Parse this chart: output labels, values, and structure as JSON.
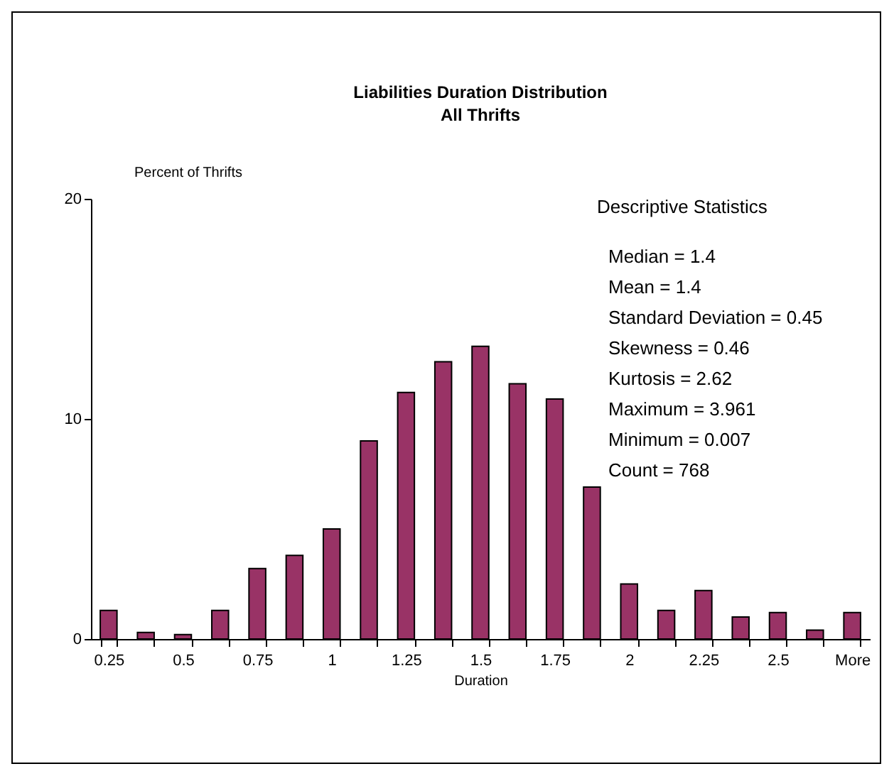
{
  "chart_data": {
    "type": "bar",
    "title": "Liabilities Duration Distribution",
    "subtitle": "All Thrifts",
    "xlabel": "Duration",
    "ylabel": "Percent of Thrifts",
    "categories": [
      "0.25",
      null,
      "0.5",
      null,
      "0.75",
      null,
      "1",
      null,
      "1.25",
      null,
      "1.5",
      null,
      "1.75",
      null,
      "2",
      null,
      "2.25",
      null,
      "2.5",
      null,
      "More"
    ],
    "values": [
      1.3,
      0.3,
      0.2,
      1.3,
      3.2,
      3.8,
      5.0,
      9.0,
      11.2,
      12.6,
      13.3,
      11.6,
      10.9,
      6.9,
      2.5,
      1.3,
      2.2,
      1.0,
      1.2,
      0.4,
      1.2
    ],
    "color": "#993366",
    "ylim": [
      0,
      20
    ],
    "yticks": [
      0,
      10,
      20
    ],
    "grid": false,
    "annotations": [
      "Descriptive Statistics",
      "Median = 1.4",
      "Mean = 1.4",
      "Standard Deviation = 0.45",
      "Skewness = 0.46",
      "Kurtosis = 2.62",
      "Maximum = 3.961",
      "Minimum = 0.007",
      "Count = 768"
    ]
  }
}
